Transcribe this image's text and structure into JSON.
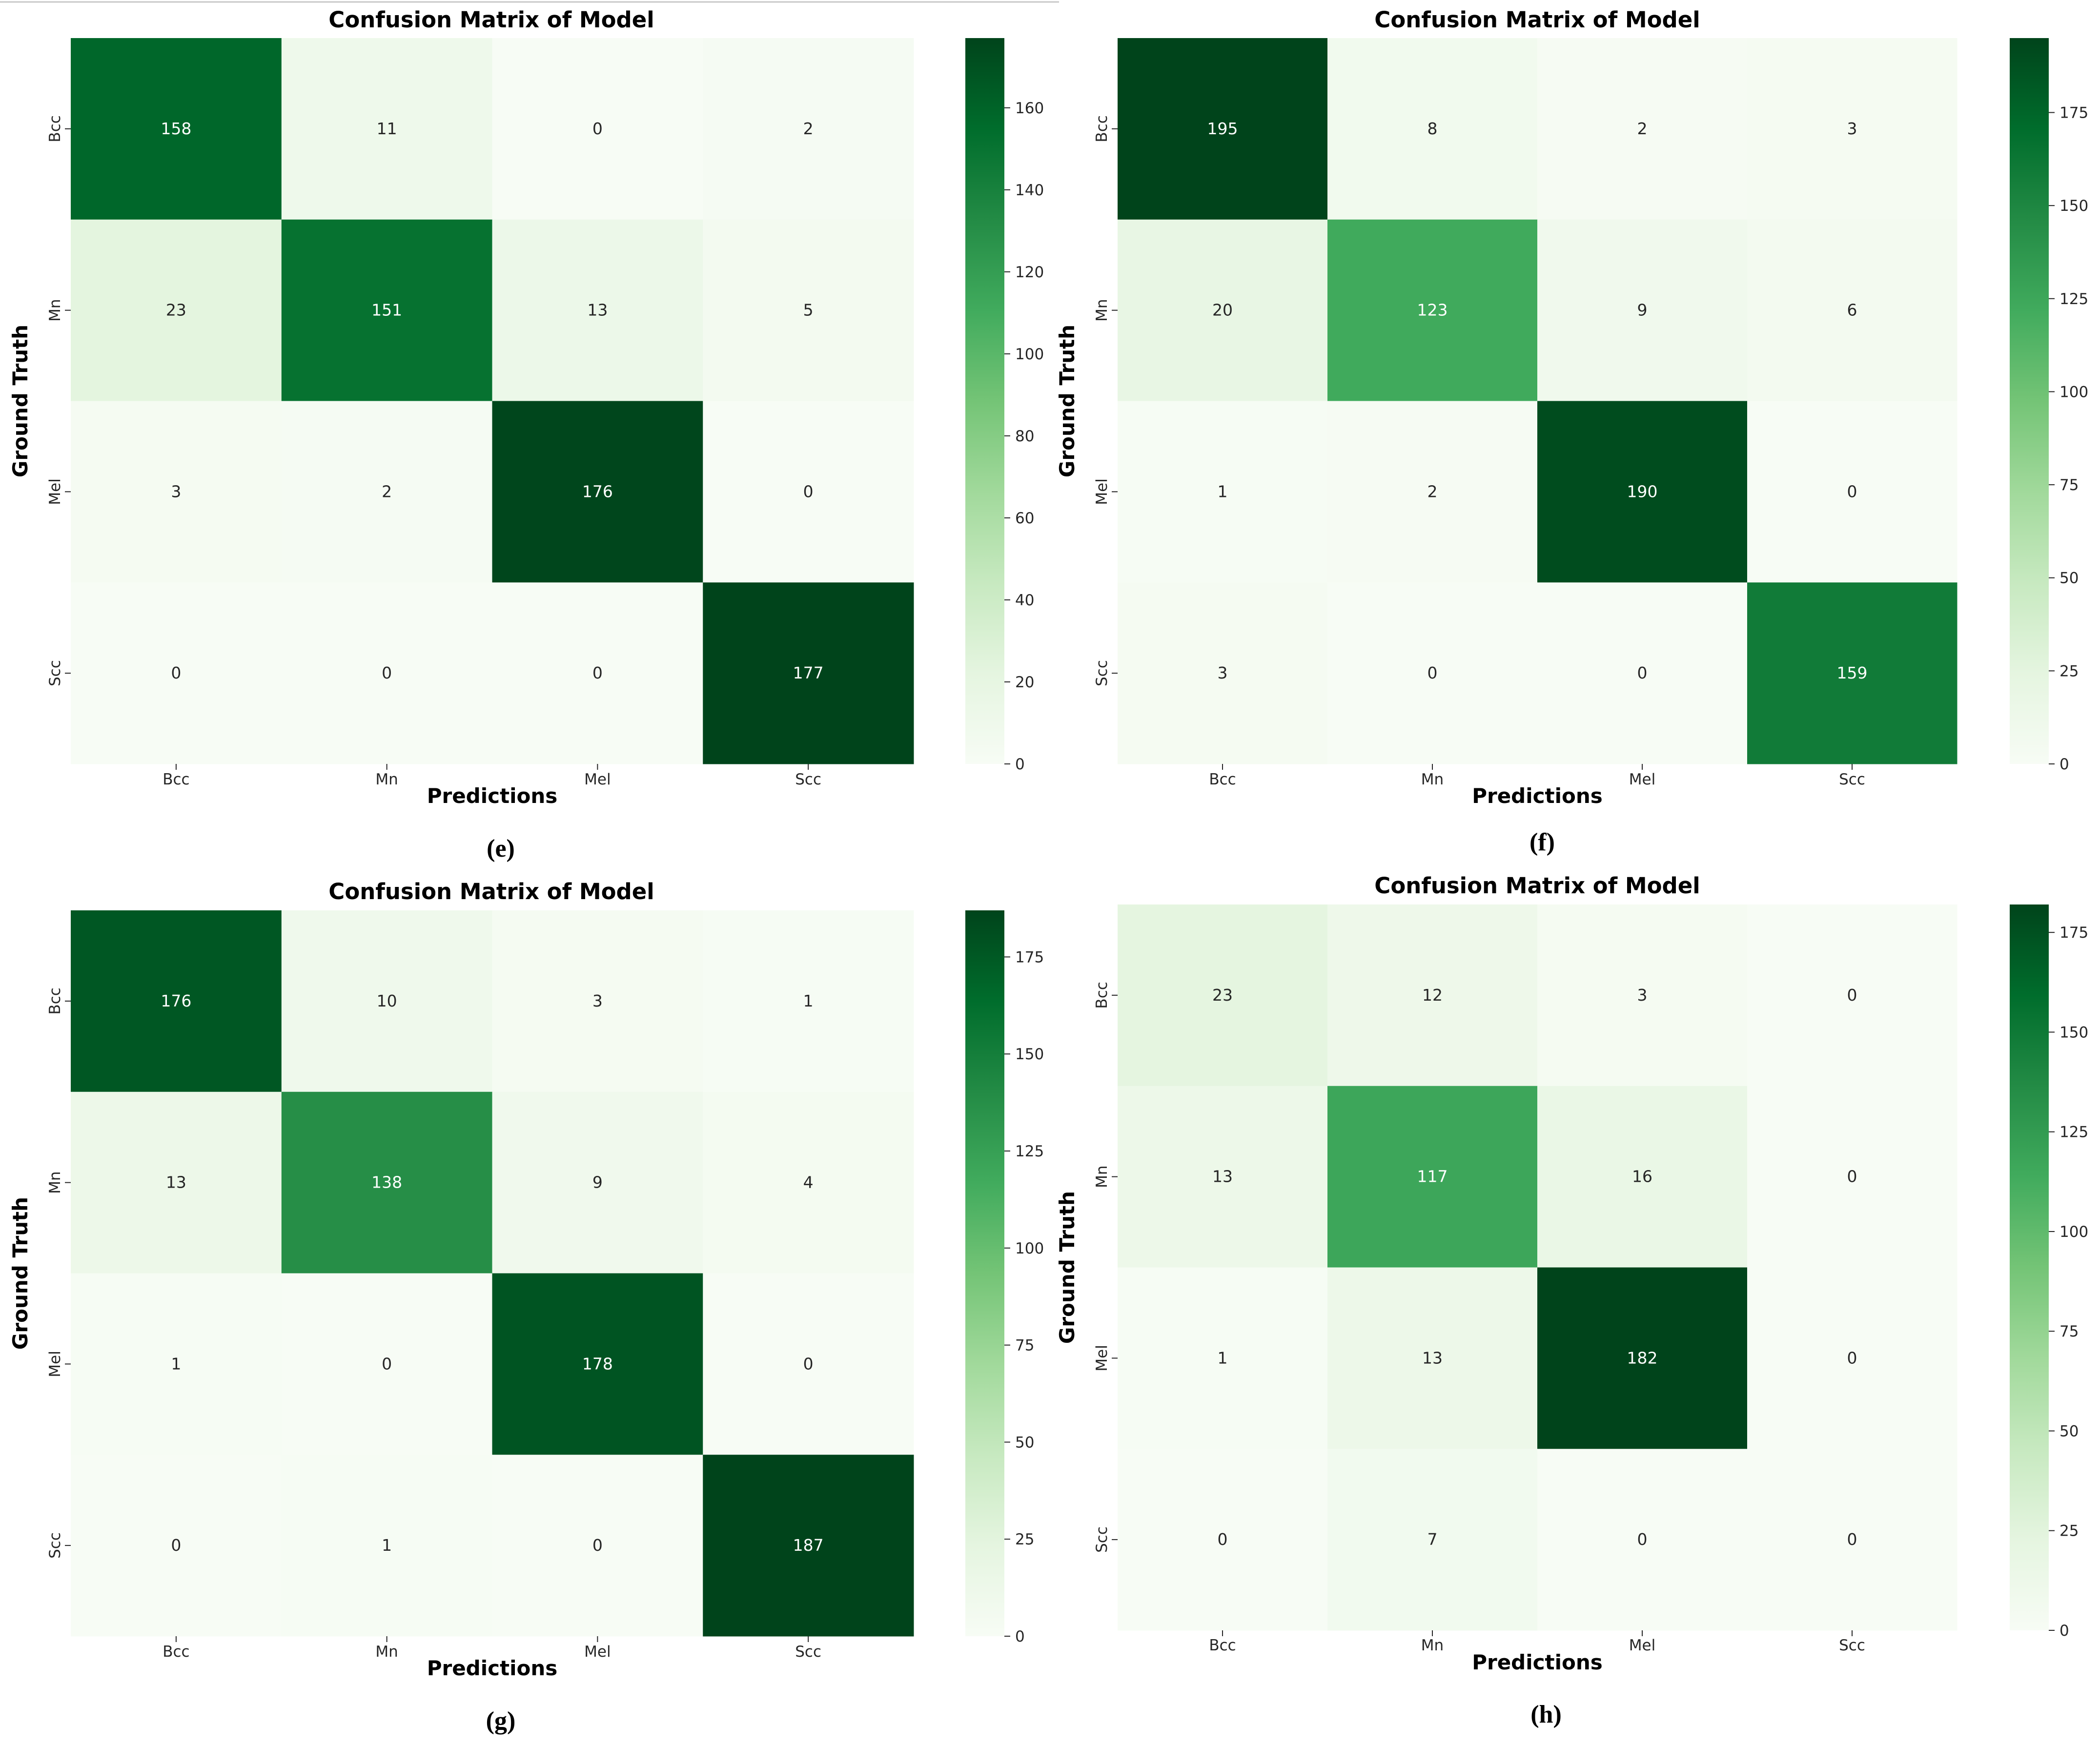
{
  "chart_data": [
    {
      "type": "heatmap",
      "caption": "(e)",
      "title": "Confusion Matrix of Model",
      "xlabel": "Predictions",
      "ylabel": "Ground Truth",
      "x_categories": [
        "Bcc",
        "Mn",
        "Mel",
        "Scc"
      ],
      "y_categories": [
        "Bcc",
        "Mn",
        "Mel",
        "Scc"
      ],
      "matrix": [
        [
          158,
          11,
          0,
          2
        ],
        [
          23,
          151,
          13,
          5
        ],
        [
          3,
          2,
          176,
          0
        ],
        [
          0,
          0,
          0,
          177
        ]
      ],
      "colormap": "Greens",
      "colorbar_range": [
        0,
        177
      ],
      "colorbar_ticks": [
        0,
        20,
        40,
        60,
        80,
        100,
        120,
        140,
        160
      ]
    },
    {
      "type": "heatmap",
      "caption": "(f)",
      "title": "Confusion Matrix of Model",
      "xlabel": "Predictions",
      "ylabel": "Ground Truth",
      "x_categories": [
        "Bcc",
        "Mn",
        "Mel",
        "Scc"
      ],
      "y_categories": [
        "Bcc",
        "Mn",
        "Mel",
        "Scc"
      ],
      "matrix": [
        [
          195,
          8,
          2,
          3
        ],
        [
          20,
          123,
          9,
          6
        ],
        [
          1,
          2,
          190,
          0
        ],
        [
          3,
          0,
          0,
          159
        ]
      ],
      "colormap": "Greens",
      "colorbar_range": [
        0,
        195
      ],
      "colorbar_ticks": [
        0,
        25,
        50,
        75,
        100,
        125,
        150,
        175
      ]
    },
    {
      "type": "heatmap",
      "caption": "(g)",
      "title": "Confusion Matrix of Model",
      "xlabel": "Predictions",
      "ylabel": "Ground Truth",
      "x_categories": [
        "Bcc",
        "Mn",
        "Mel",
        "Scc"
      ],
      "y_categories": [
        "Bcc",
        "Mn",
        "Mel",
        "Scc"
      ],
      "matrix": [
        [
          176,
          10,
          3,
          1
        ],
        [
          13,
          138,
          9,
          4
        ],
        [
          1,
          0,
          178,
          0
        ],
        [
          0,
          1,
          0,
          187
        ]
      ],
      "colormap": "Greens",
      "colorbar_range": [
        0,
        187
      ],
      "colorbar_ticks": [
        0,
        25,
        50,
        75,
        100,
        125,
        150,
        175
      ]
    },
    {
      "type": "heatmap",
      "caption": "(h)",
      "title": "Confusion Matrix of Model",
      "xlabel": "Predictions",
      "ylabel": "Ground Truth",
      "x_categories": [
        "Bcc",
        "Mn",
        "Mel",
        "Scc"
      ],
      "y_categories": [
        "Bcc",
        "Mn",
        "Mel",
        "Scc"
      ],
      "matrix": [
        [
          23,
          12,
          3,
          0
        ],
        [
          13,
          117,
          16,
          0
        ],
        [
          1,
          13,
          182,
          0
        ],
        [
          0,
          7,
          0,
          0
        ]
      ],
      "colormap": "Greens",
      "colorbar_range": [
        0,
        182
      ],
      "colorbar_ticks": [
        0,
        25,
        50,
        75,
        100,
        125,
        150,
        175
      ]
    }
  ]
}
